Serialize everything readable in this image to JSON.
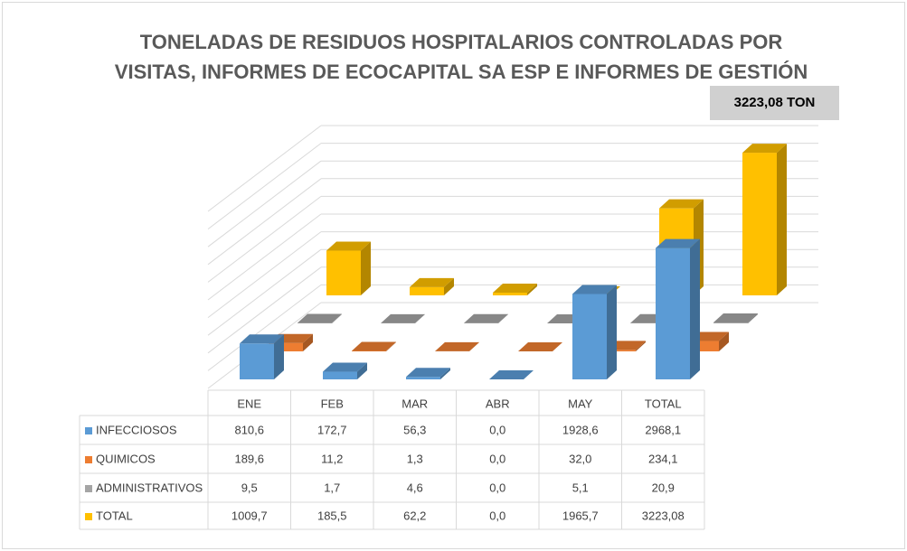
{
  "chart_data": {
    "type": "bar3d",
    "title": "TONELADAS DE RESIDUOS HOSPITALARIOS CONTROLADAS POR VISITAS, INFORMES DE ECOCAPITAL SA ESP E INFORMES DE GESTIÓN",
    "annotation": "3223,08 TON",
    "categories": [
      "ENE",
      "FEB",
      "MAR",
      "ABR",
      "MAY",
      "TOTAL"
    ],
    "series": [
      {
        "name": "INFECCIOSOS",
        "color": "#5b9bd5",
        "values": [
          810.6,
          172.7,
          56.3,
          0,
          1928.6,
          2968.1
        ],
        "value_labels": [
          "810,6",
          "172,7",
          "56,3",
          "0,0",
          "1928,6",
          "2968,1"
        ]
      },
      {
        "name": "QUIMICOS",
        "color": "#ed7d31",
        "values": [
          189.6,
          11.2,
          1.3,
          0,
          32,
          234.1
        ],
        "value_labels": [
          "189,6",
          "11,2",
          "1,3",
          "0,0",
          "32,0",
          "234,1"
        ]
      },
      {
        "name": "ADMINISTRATIVOS",
        "color": "#a5a5a5",
        "values": [
          9.5,
          1.7,
          4.6,
          0,
          5.1,
          20.9
        ],
        "value_labels": [
          "9,5",
          "1,7",
          "4,6",
          "0,0",
          "5,1",
          "20,9"
        ]
      },
      {
        "name": "TOTAL",
        "color": "#ffc000",
        "values": [
          1009.7,
          185.5,
          62.2,
          0,
          1965.7,
          3223.08
        ],
        "value_labels": [
          "1009,7",
          "185,5",
          "62,2",
          "0,0",
          "1965,7",
          "3223,08"
        ]
      }
    ],
    "ylim": [
      0,
      4000
    ],
    "yticks": [
      0,
      400,
      800,
      1200,
      1600,
      2000,
      2400,
      2800,
      3200,
      3600,
      4000
    ],
    "grid": true
  }
}
